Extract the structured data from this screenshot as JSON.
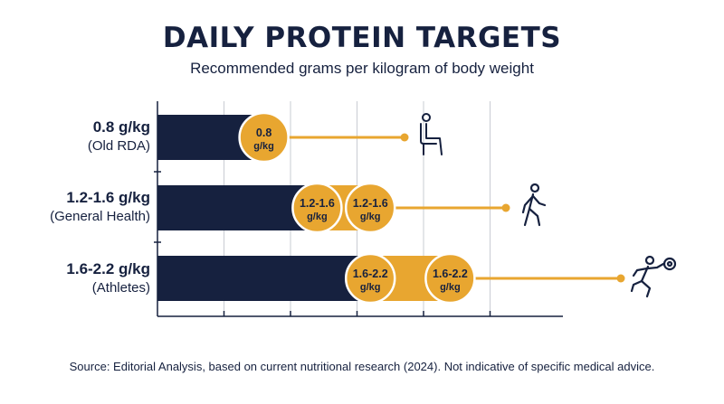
{
  "title": "DAILY PROTEIN TARGETS",
  "subtitle": "Recommended grams per kilogram of body weight",
  "source": "Source: Editorial Analysis, based on current nutritional research (2024). Not indicative of specific medical advice.",
  "colors": {
    "navy": "#16213f",
    "gold": "#e8a630",
    "grid": "#c9ccd3"
  },
  "chart_data": {
    "type": "bar",
    "title": "DAILY PROTEIN TARGETS",
    "subtitle": "Recommended grams per kilogram of body weight",
    "xlim": [
      0,
      3
    ],
    "grid": true,
    "categories": [
      {
        "label": "0.8 g/kg",
        "sublabel": "(Old RDA)",
        "low": 0.8,
        "high": 0.8,
        "markers": [
          {
            "value": 0.8,
            "line1": "0.8",
            "line2": "g/kg"
          }
        ],
        "icon": "seated-person-icon"
      },
      {
        "label": "1.2-1.6 g/kg",
        "sublabel": "(General Health)",
        "low": 1.2,
        "high": 1.6,
        "markers": [
          {
            "value": 1.2,
            "line1": "1.2-1.6",
            "line2": "g/kg"
          },
          {
            "value": 1.6,
            "line1": "1.2-1.6",
            "line2": "g/kg"
          }
        ],
        "icon": "walking-person-icon"
      },
      {
        "label": "1.6-2.2 g/kg",
        "sublabel": "(Athletes)",
        "low": 1.6,
        "high": 2.2,
        "markers": [
          {
            "value": 1.6,
            "line1": "1.6-2.2",
            "line2": "g/kg"
          },
          {
            "value": 2.2,
            "line1": "1.6-2.2",
            "line2": "g/kg"
          }
        ],
        "icon": "running-athlete-icon"
      }
    ]
  }
}
